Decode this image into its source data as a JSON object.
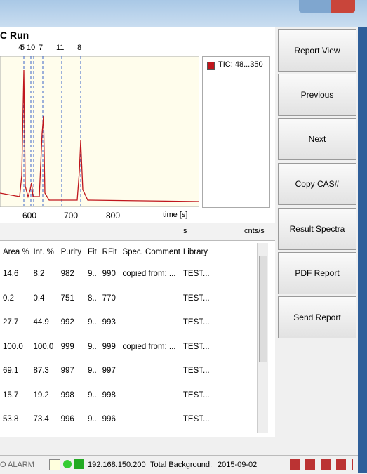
{
  "window": {
    "title": "C Run"
  },
  "peaks": [
    "4",
    "5",
    "10",
    "7",
    "11",
    "8"
  ],
  "legend": "TIC: 48...350",
  "axis": {
    "ticks": [
      "600",
      "700",
      "800"
    ],
    "label": "time [s]"
  },
  "table_bar": {
    "left": "s",
    "right": "cnts/s"
  },
  "table": {
    "columns": [
      "Area %",
      "Int. %",
      "Purity",
      "Fit",
      "RFit",
      "Spec. Comment",
      "Library"
    ],
    "rows": [
      [
        "14.6",
        "8.2",
        "982",
        "9..",
        "990",
        "copied from: ...",
        "TEST..."
      ],
      [
        "0.2",
        "0.4",
        "751",
        "8..",
        "770",
        null,
        "TEST..."
      ],
      [
        "27.7",
        "44.9",
        "992",
        "9..",
        "993",
        null,
        "TEST..."
      ],
      [
        "100.0",
        "100.0",
        "999",
        "9..",
        "999",
        "copied from: ...",
        "TEST..."
      ],
      [
        "69.1",
        "87.3",
        "997",
        "9..",
        "997",
        null,
        "TEST..."
      ],
      [
        "15.7",
        "19.2",
        "998",
        "9..",
        "998",
        null,
        "TEST..."
      ],
      [
        "53.8",
        "73.4",
        "996",
        "9..",
        "996",
        null,
        "TEST..."
      ]
    ]
  },
  "buttons": [
    "Report View",
    "Previous",
    "Next",
    "Copy CAS#",
    "Result Spectra",
    "PDF Report",
    "Send Report"
  ],
  "status": {
    "alarm": "O ALARM",
    "ip": "192.168.150.200",
    "background": "Total Background:",
    "date": "2015-09-02"
  }
}
